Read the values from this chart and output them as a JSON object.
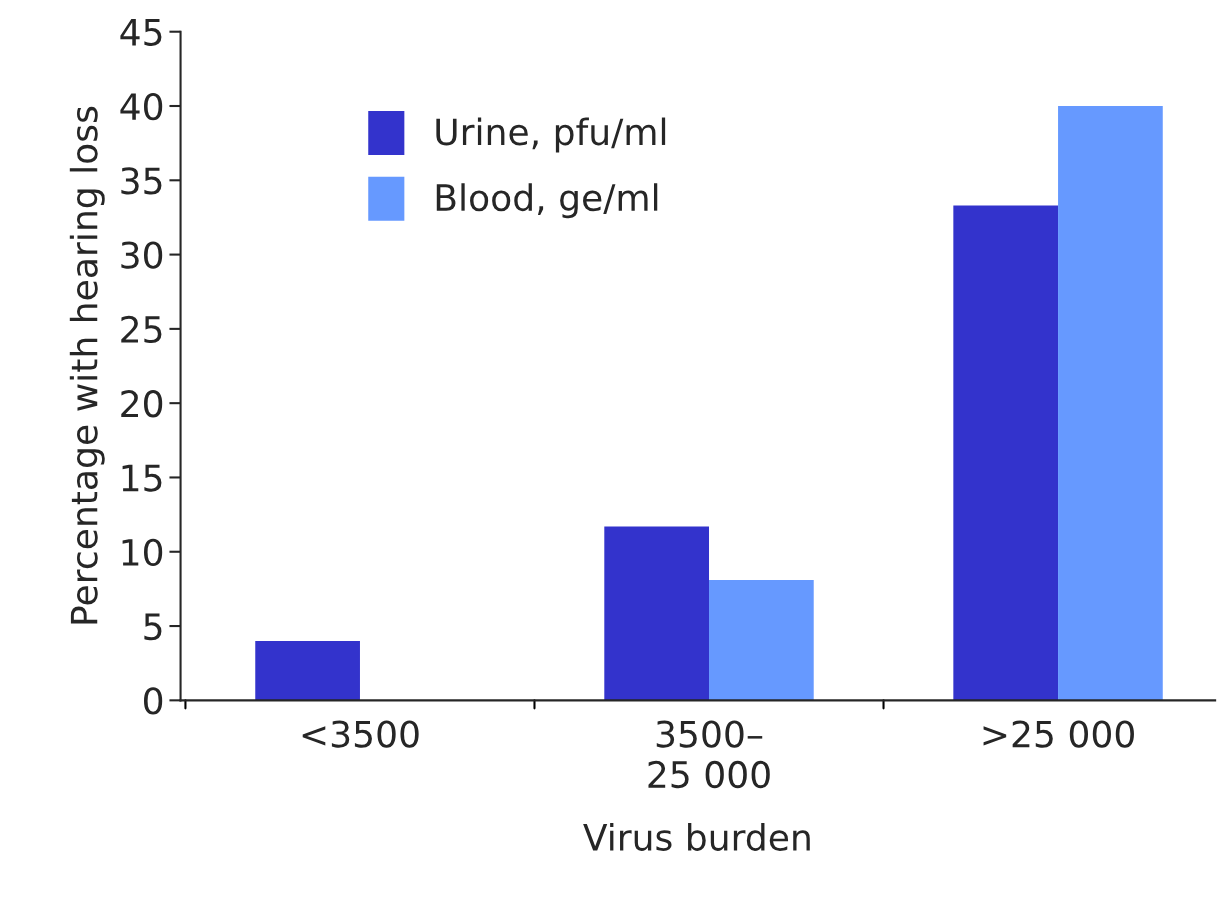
{
  "chart_data": {
    "type": "bar",
    "xlabel": "Virus burden",
    "ylabel": "Percentage with hearing loss",
    "categories": [
      "<3500",
      "3500–\n25 000",
      ">25 000"
    ],
    "series": [
      {
        "name": "Urine, pfu/ml",
        "color": "#3333cc",
        "values": [
          4.0,
          11.7,
          33.3
        ]
      },
      {
        "name": "Blood, ge/ml",
        "color": "#6699ff",
        "values": [
          0,
          8.1,
          40.0
        ]
      }
    ],
    "ylim": [
      0,
      45
    ],
    "yticks": [
      0,
      5,
      10,
      15,
      20,
      25,
      30,
      35,
      40,
      45
    ],
    "grid": false,
    "legend": "top left"
  }
}
